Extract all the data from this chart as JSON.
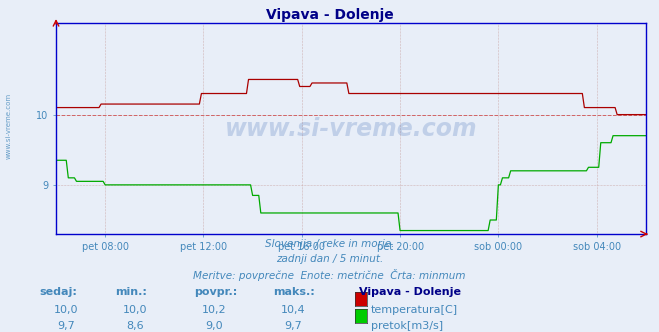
{
  "title": "Vipava - Dolenje",
  "bg_color": "#e8eef8",
  "plot_bg_color": "#e8eef8",
  "temp_color": "#aa0000",
  "flow_color": "#00aa00",
  "axis_color": "#0000cc",
  "tick_color": "#4488bb",
  "title_color": "#000088",
  "text_color": "#4488bb",
  "grid_color": "#ccaaaa",
  "watermark": "www.si-vreme.com",
  "subtitle_lines": [
    "Slovenija / reke in morje.",
    "zadnji dan / 5 minut.",
    "Meritve: povprečne  Enote: metrične  Črta: minmum"
  ],
  "x_tick_labels": [
    "pet 08:00",
    "pet 12:00",
    "pet 16:00",
    "pet 20:00",
    "sob 00:00",
    "sob 04:00"
  ],
  "x_tick_pos": [
    120,
    360,
    600,
    840,
    1080,
    1320
  ],
  "xlim": [
    0,
    1440
  ],
  "ylim": [
    8.3,
    11.3
  ],
  "yticks": [
    9.0,
    10.0
  ],
  "ytick_labels": [
    "9",
    "10"
  ],
  "table_headers": [
    "sedaj:",
    "min.:",
    "povpr.:",
    "maks.:"
  ],
  "table_station": "Vipava - Dolenje",
  "rows": [
    {
      "label": "temperatura[C]",
      "color": "#cc0000",
      "sedaj": "10,0",
      "min": "10,0",
      "povpr": "10,2",
      "maks": "10,4"
    },
    {
      "label": "pretok[m3/s]",
      "color": "#00cc00",
      "sedaj": "9,7",
      "min": "8,6",
      "povpr": "9,0",
      "maks": "9,7"
    }
  ]
}
